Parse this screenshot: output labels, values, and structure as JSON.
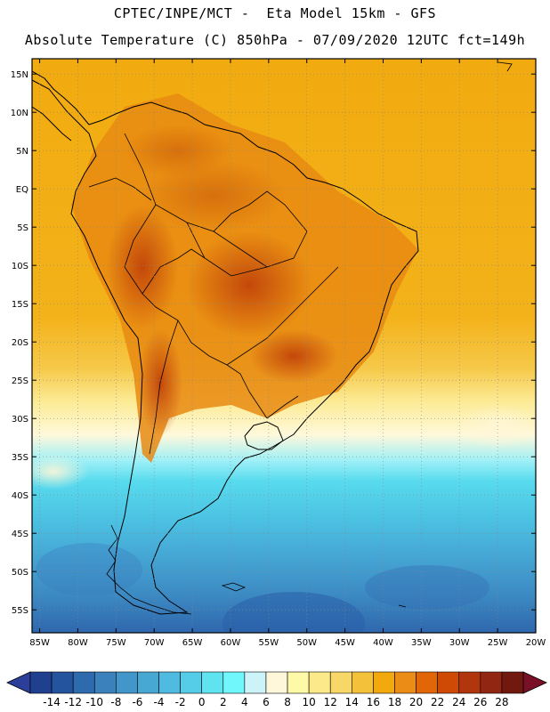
{
  "header": {
    "line1": "CPTEC/INPE/MCT -  Eta Model 15km - GFS",
    "line2": "Absolute Temperature (C) 850hPa - 07/09/2020 12UTC fct=149h"
  },
  "map": {
    "lat_range": [
      -58,
      17
    ],
    "lon_range": [
      -86,
      -20
    ],
    "lat_labels": [
      "15N",
      "10N",
      "5N",
      "EQ",
      "5S",
      "10S",
      "15S",
      "20S",
      "25S",
      "30S",
      "35S",
      "40S",
      "45S",
      "50S",
      "55S"
    ],
    "lat_values": [
      15,
      10,
      5,
      0,
      -5,
      -10,
      -15,
      -20,
      -25,
      -30,
      -35,
      -40,
      -45,
      -50,
      -55
    ],
    "lon_labels": [
      "85W",
      "80W",
      "75W",
      "70W",
      "65W",
      "60W",
      "55W",
      "50W",
      "45W",
      "40W",
      "35W",
      "30W",
      "25W",
      "20W"
    ],
    "lon_values": [
      -85,
      -80,
      -75,
      -70,
      -65,
      -60,
      -55,
      -50,
      -45,
      -40,
      -35,
      -30,
      -25,
      -20
    ],
    "grid": true
  },
  "colorbar": {
    "labels": [
      "-14",
      "-12",
      "-10",
      "-8",
      "-6",
      "-4",
      "-2",
      "0",
      "2",
      "4",
      "6",
      "8",
      "10",
      "12",
      "14",
      "16",
      "18",
      "20",
      "22",
      "24",
      "26",
      "28"
    ],
    "colors": [
      "#1f3f8f",
      "#25549e",
      "#2e6aae",
      "#3b82bd",
      "#4296c9",
      "#47a8d4",
      "#4fbbe0",
      "#56cde8",
      "#5fe3ef",
      "#6ff7fb",
      "#ccf3f8",
      "#fff7da",
      "#fef9a6",
      "#fce98a",
      "#f6d768",
      "#f4c13a",
      "#f1a90e",
      "#ea8c16",
      "#e06607",
      "#cf4b05",
      "#b2360d",
      "#912712",
      "#71190f"
    ],
    "under_color": "#2b3f9a",
    "over_color": "#7a1028"
  }
}
